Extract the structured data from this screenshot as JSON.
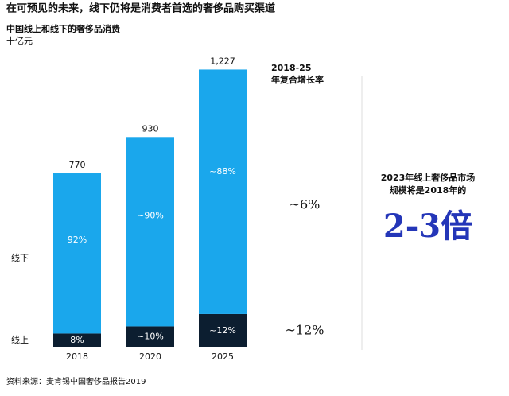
{
  "title": "在可预见的未来，线下仍将是消费者首选的奢侈品购买渠道",
  "source": "资料来源：麦肯锡中国奢侈品报告2019",
  "chart_data": {
    "type": "bar",
    "stacked": true,
    "subtitle": "中国线上和线下的奢侈品消费",
    "unit": "十亿元",
    "categories": [
      "2018",
      "2020",
      "2025"
    ],
    "series": [
      {
        "name": "线上",
        "color": "#0c1e30",
        "values": [
          8,
          10,
          12
        ],
        "value_labels": [
          "8%",
          "~10%",
          "~12%"
        ]
      },
      {
        "name": "线下",
        "color": "#1aa7ec",
        "values": [
          92,
          90,
          88
        ],
        "value_labels": [
          "92%",
          "~90%",
          "~88%"
        ]
      }
    ],
    "totals": {
      "values": [
        770,
        930,
        1227
      ],
      "value_labels": [
        "770",
        "930",
        "1,227"
      ]
    },
    "cagr": {
      "header": [
        "2018-25",
        "年复合增长率"
      ],
      "labels": [
        "~12%",
        "~6%"
      ]
    },
    "callout": {
      "lines": [
        "2023年线上奢侈品市场",
        "规模将是2018年的"
      ],
      "highlight": "2-3倍"
    }
  }
}
